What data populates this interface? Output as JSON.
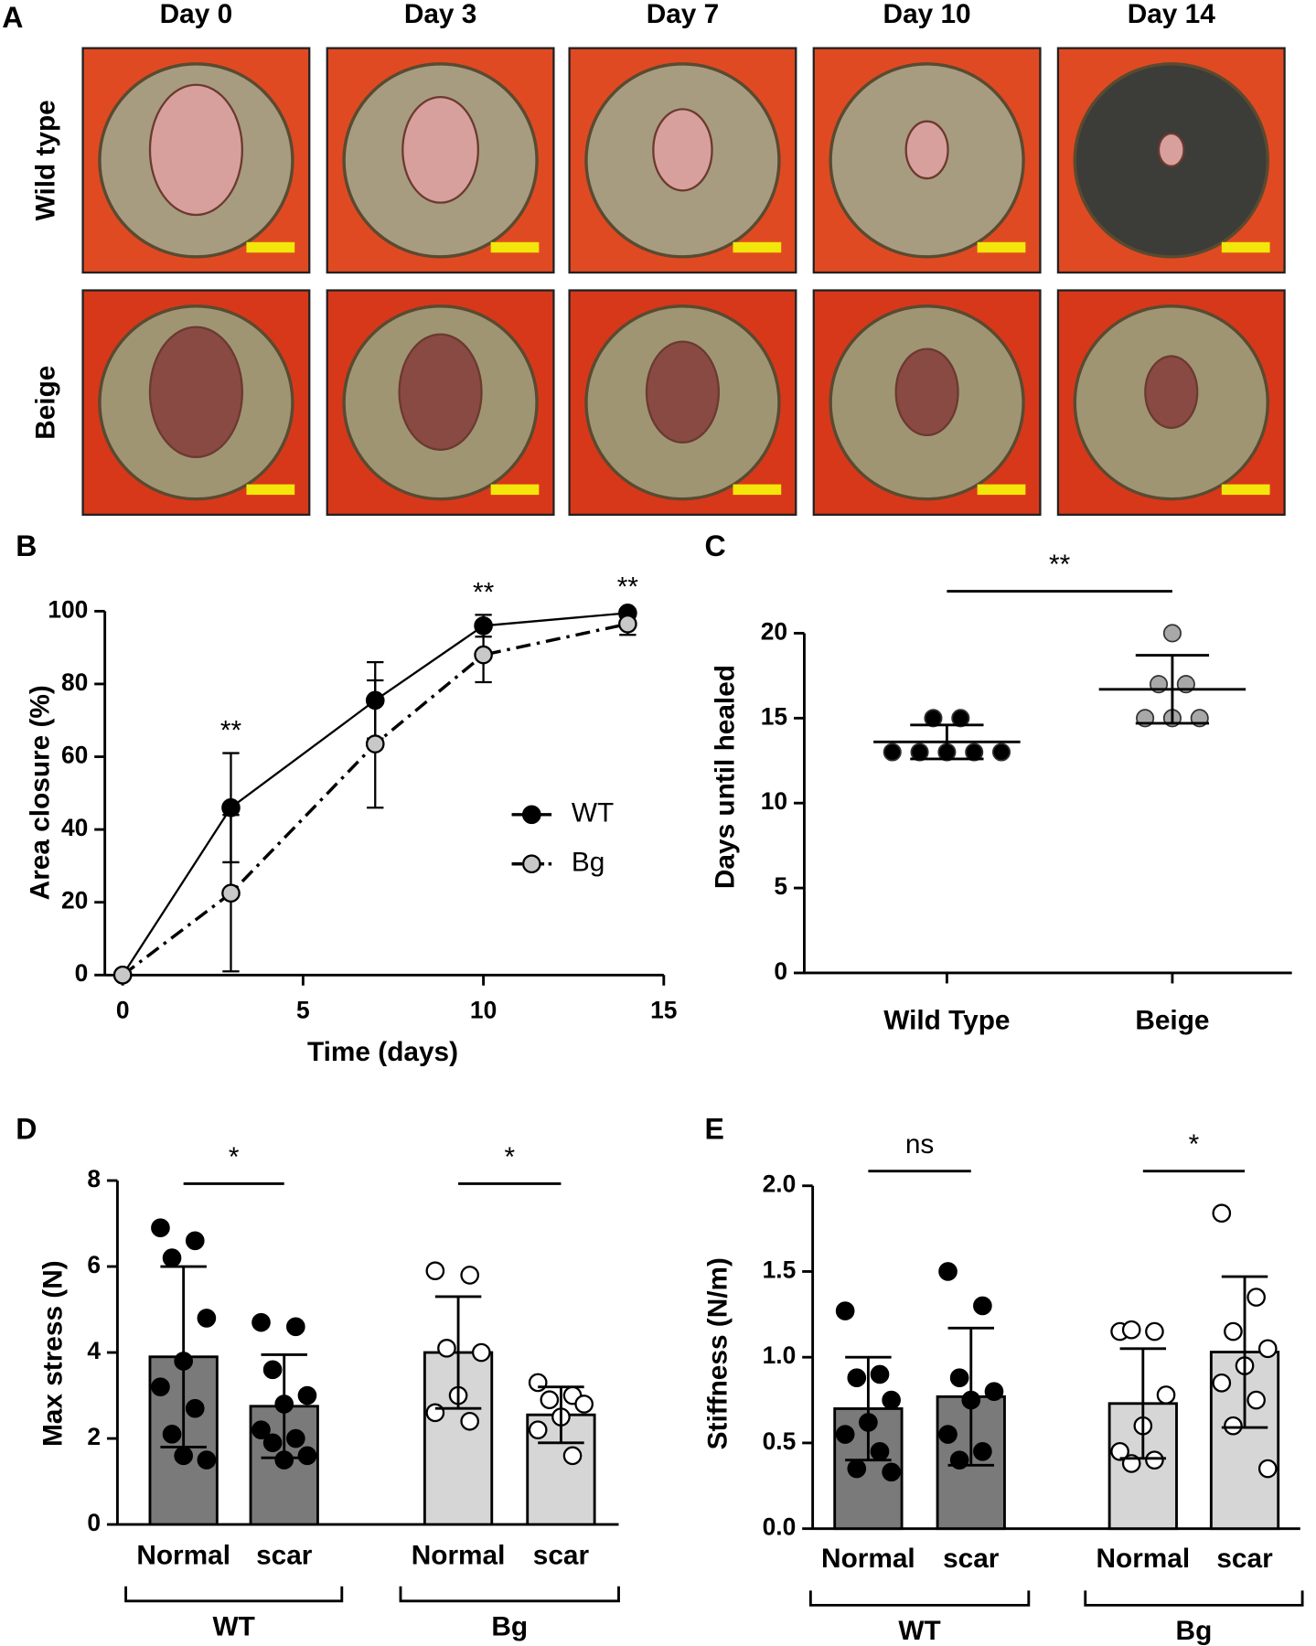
{
  "panel_a": {
    "label": "A",
    "columns": [
      "Day 0",
      "Day 3",
      "Day 7",
      "Day 10",
      "Day 14"
    ],
    "rows": [
      "Wild type",
      "Beige"
    ]
  },
  "chart_data": [
    {
      "type": "line",
      "panel": "B",
      "x_label": "Time (days)",
      "y_label": "Area closure (%)",
      "x": [
        0,
        3,
        7,
        10,
        14
      ],
      "xlim": [
        0,
        15
      ],
      "xticks": [
        0,
        5,
        10,
        15
      ],
      "ylim": [
        0,
        100
      ],
      "yticks": [
        0,
        20,
        40,
        60,
        80,
        100
      ],
      "legend": "right",
      "series": [
        {
          "name": "WT",
          "color": "#000000",
          "marker_fill": "#000000",
          "line_style": "solid",
          "values": [
            0,
            46,
            75.5,
            96,
            99.5
          ],
          "errors": [
            0,
            15,
            10.5,
            3,
            1
          ]
        },
        {
          "name": "Bg",
          "color": "#000000",
          "marker_fill": "#c8c8c8",
          "line_style": "dashdot",
          "values": [
            0,
            22.5,
            63.5,
            88,
            96.5
          ],
          "errors": [
            0,
            21.5,
            17.5,
            7.5,
            3
          ]
        }
      ],
      "annotations": [
        {
          "text": "**",
          "x": 3
        },
        {
          "text": "**",
          "x": 10
        },
        {
          "text": "**",
          "x": 14
        }
      ]
    },
    {
      "type": "strip",
      "panel": "C",
      "y_label": "Days until healed",
      "categories": [
        "Wild Type",
        "Beige"
      ],
      "ylim": [
        0,
        20
      ],
      "yticks": [
        0,
        5,
        10,
        15,
        20
      ],
      "colors": [
        "#000000",
        "#a8a8a8"
      ],
      "points": [
        [
          13,
          13,
          13,
          13,
          13,
          15,
          15
        ],
        [
          20,
          17,
          17,
          15,
          15,
          15
        ]
      ],
      "means": [
        13.6,
        16.7
      ],
      "errors": [
        1,
        2
      ],
      "annotations": [
        "**"
      ]
    },
    {
      "type": "bar",
      "panel": "D",
      "y_label": "Max stress (N)",
      "categories": [
        "Normal",
        "scar",
        "Normal",
        "scar"
      ],
      "groups": [
        "WT",
        "Bg"
      ],
      "ylim": [
        0,
        8
      ],
      "yticks": [
        0,
        2,
        4,
        6,
        8
      ],
      "colors": [
        "#7a7a7a",
        "#7a7a7a",
        "#d6d6d6",
        "#d6d6d6"
      ],
      "point_colors": [
        "#000000",
        "#000000",
        "#ffffff",
        "#ffffff"
      ],
      "values": [
        3.9,
        2.75,
        4.0,
        2.55
      ],
      "errors": [
        2.1,
        1.2,
        1.3,
        0.65
      ],
      "points": [
        [
          6.9,
          6.6,
          6.2,
          4.8,
          3.8,
          3.2,
          2.7,
          2.1,
          1.5,
          1.6
        ],
        [
          4.7,
          4.6,
          3.6,
          3.0,
          2.8,
          2.2,
          2.0,
          1.9,
          1.6,
          1.5
        ],
        [
          5.9,
          5.8,
          4.1,
          4.0,
          3.0,
          2.6,
          2.4
        ],
        [
          3.3,
          3.0,
          2.9,
          2.8,
          2.5,
          2.2,
          1.6
        ]
      ],
      "annotations": [
        "*",
        "*"
      ]
    },
    {
      "type": "bar",
      "panel": "E",
      "y_label": "Stiffness (N/m)",
      "categories": [
        "Normal",
        "scar",
        "Normal",
        "scar"
      ],
      "groups": [
        "WT",
        "Bg"
      ],
      "ylim": [
        0,
        2
      ],
      "yticks": [
        {
          "value": 0,
          "label": "0.0"
        },
        0.5,
        {
          "value": 1,
          "label": "1.0"
        },
        1.5,
        {
          "value": 2,
          "label": "2.0"
        }
      ],
      "colors": [
        "#7a7a7a",
        "#7a7a7a",
        "#d6d6d6",
        "#d6d6d6"
      ],
      "point_colors": [
        "#000000",
        "#000000",
        "#ffffff",
        "#ffffff"
      ],
      "values": [
        0.7,
        0.77,
        0.73,
        1.03
      ],
      "errors": [
        0.3,
        0.4,
        0.32,
        0.44
      ],
      "points": [
        [
          1.27,
          0.9,
          0.88,
          0.75,
          0.62,
          0.55,
          0.45,
          0.35,
          0.33
        ],
        [
          1.5,
          1.3,
          0.88,
          0.8,
          0.75,
          0.55,
          0.45,
          0.4
        ],
        [
          1.15,
          1.15,
          1.16,
          0.78,
          0.6,
          0.45,
          0.4,
          0.38
        ],
        [
          1.84,
          1.35,
          1.15,
          1.05,
          0.95,
          0.85,
          0.75,
          0.6,
          0.35
        ]
      ],
      "annotations": [
        "ns",
        "*"
      ]
    }
  ]
}
